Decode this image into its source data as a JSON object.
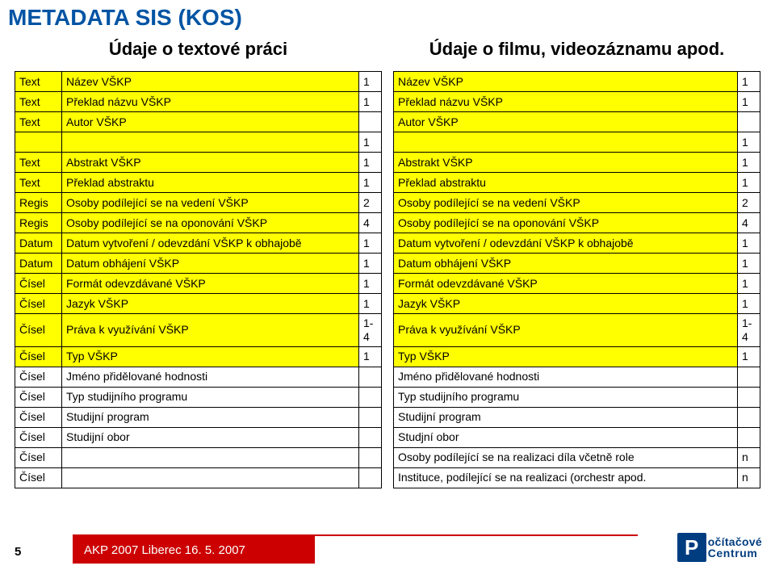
{
  "title": "METADATA SIS (KOS)",
  "left_heading": "Údaje o textové práci",
  "right_heading": "Údaje o filmu, videozáznamu apod.",
  "colors": {
    "title_color": "#0054a4",
    "highlight_bg": "#ffff00",
    "footer_bar_bg": "#cc0000",
    "footer_bar_text": "#ffffff",
    "logo_bg": "#003d80",
    "page_bg": "#ffffff"
  },
  "left_rows": [
    {
      "prefix": "Text",
      "label": "Název VŠKP",
      "num": "1",
      "hl": true
    },
    {
      "prefix": "Text",
      "label": "Překlad názvu VŠKP",
      "num": "1",
      "hl": true
    },
    {
      "prefix": "Text",
      "label": "Autor VŠKP",
      "num": "",
      "hl": true
    },
    {
      "prefix": "",
      "label": "",
      "num": "1",
      "hl": true
    },
    {
      "prefix": "Text",
      "label": "Abstrakt VŠKP",
      "num": "1",
      "hl": true
    },
    {
      "prefix": "Text",
      "label": "Překlad abstraktu",
      "num": "1",
      "hl": true
    },
    {
      "prefix": "Regis",
      "label": "Osoby podílející se na vedení VŠKP",
      "num": "2",
      "hl": true
    },
    {
      "prefix": "Regis",
      "label": "Osoby podílející se na oponování VŠKP",
      "num": "4",
      "hl": true
    },
    {
      "prefix": "Datum",
      "label": "Datum vytvoření / odevzdání VŠKP k obhajobě",
      "num": "1",
      "hl": true
    },
    {
      "prefix": "Datum",
      "label": "Datum obhájení VŠKP",
      "num": "1",
      "hl": true
    },
    {
      "prefix": "Čísel",
      "label": "Formát odevzdávané VŠKP",
      "num": "1",
      "hl": true
    },
    {
      "prefix": "Čísel",
      "label": "Jazyk VŠKP",
      "num": "1",
      "hl": true
    },
    {
      "prefix": "Čísel",
      "label": "Práva k využívání VŠKP",
      "num": "1-4",
      "hl": true
    },
    {
      "prefix": "Čísel",
      "label": "Typ VŠKP",
      "num": "1",
      "hl": true
    },
    {
      "prefix": "Čísel",
      "label": "Jméno přidělované hodnosti",
      "num": "",
      "hl": false
    },
    {
      "prefix": "Čísel",
      "label": "Typ studijního programu",
      "num": "",
      "hl": false
    },
    {
      "prefix": "Čísel",
      "label": "Studijní program",
      "num": "",
      "hl": false
    },
    {
      "prefix": "Čísel",
      "label": "Studijní obor",
      "num": "",
      "hl": false
    },
    {
      "prefix": "Čísel",
      "label": "",
      "num": "",
      "hl": false
    },
    {
      "prefix": "Čísel",
      "label": "",
      "num": "",
      "hl": false
    }
  ],
  "right_rows": [
    {
      "label": "Název VŠKP",
      "num": "1",
      "hl": true
    },
    {
      "label": "Překlad názvu VŠKP",
      "num": "1",
      "hl": true
    },
    {
      "label": "Autor VŠKP",
      "num": "",
      "hl": true
    },
    {
      "label": "",
      "num": "1",
      "hl": true
    },
    {
      "label": "Abstrakt VŠKP",
      "num": "1",
      "hl": true
    },
    {
      "label": "Překlad abstraktu",
      "num": "1",
      "hl": true
    },
    {
      "label": "Osoby podílející se na vedení VŠKP",
      "num": "2",
      "hl": true
    },
    {
      "label": "Osoby podílející se na oponování VŠKP",
      "num": "4",
      "hl": true
    },
    {
      "label": "Datum vytvoření / odevzdání VŠKP k obhajobě",
      "num": "1",
      "hl": true
    },
    {
      "label": "Datum obhájení VŠKP",
      "num": "1",
      "hl": true
    },
    {
      "label": "Formát odevzdávané VŠKP",
      "num": "1",
      "hl": true
    },
    {
      "label": "Jazyk VŠKP",
      "num": "1",
      "hl": true
    },
    {
      "label": "Práva k využívání VŠKP",
      "num": "1-4",
      "hl": true
    },
    {
      "label": "Typ VŠKP",
      "num": "1",
      "hl": true
    },
    {
      "label": "Jméno přidělované hodnosti",
      "num": "",
      "hl": false
    },
    {
      "label": "Typ studijního programu",
      "num": "",
      "hl": false
    },
    {
      "label": "Studijní program",
      "num": "",
      "hl": false
    },
    {
      "label": "Studjní obor",
      "num": "",
      "hl": false
    },
    {
      "label": "Osoby podílející se na realizaci díla včetně role",
      "num": "n",
      "hl": false
    },
    {
      "label": "Instituce, podílející se na realizaci (orchestr apod.",
      "num": "n",
      "hl": false
    }
  ],
  "footer": {
    "page_number": "5",
    "bar_text": "AKP 2007 Liberec 16. 5. 2007",
    "logo_letter": "P",
    "logo_line1": "očítačové",
    "logo_line2": "Centrum"
  }
}
